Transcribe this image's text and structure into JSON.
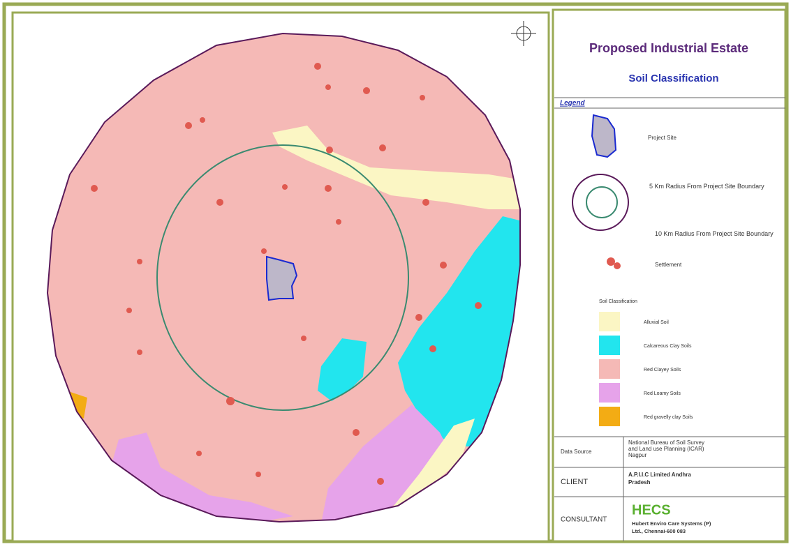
{
  "title": "Proposed Industrial Estate",
  "subtitle": "Soil Classification",
  "legend": {
    "heading": "Legend",
    "project_site": "Project Site",
    "radius_5km": "5 Km Radius From Project Site Boundary",
    "radius_10km": "10 Km Radius From Project Site Boundary",
    "settlement": "Settlement",
    "soil_heading": "Soil Classification",
    "soils": [
      "Alluvial Soil",
      "Calcareous Clay Soils",
      "Red Clayey Soils",
      "Red Loamy Soils",
      "Red gravelly clay Soils"
    ]
  },
  "info": {
    "rows": [
      [
        "Data Source",
        "National Bureau of Soil Survey and Land use Planning (ICAR) Nagpur"
      ],
      [
        "CLIENT",
        "A.P.I.I.C Limited Andhra Pradesh"
      ],
      [
        "CONSULTANT",
        "HECS",
        "Hubert Enviro Care Systems (P) Ltd., Chennai-600 083"
      ]
    ]
  }
}
